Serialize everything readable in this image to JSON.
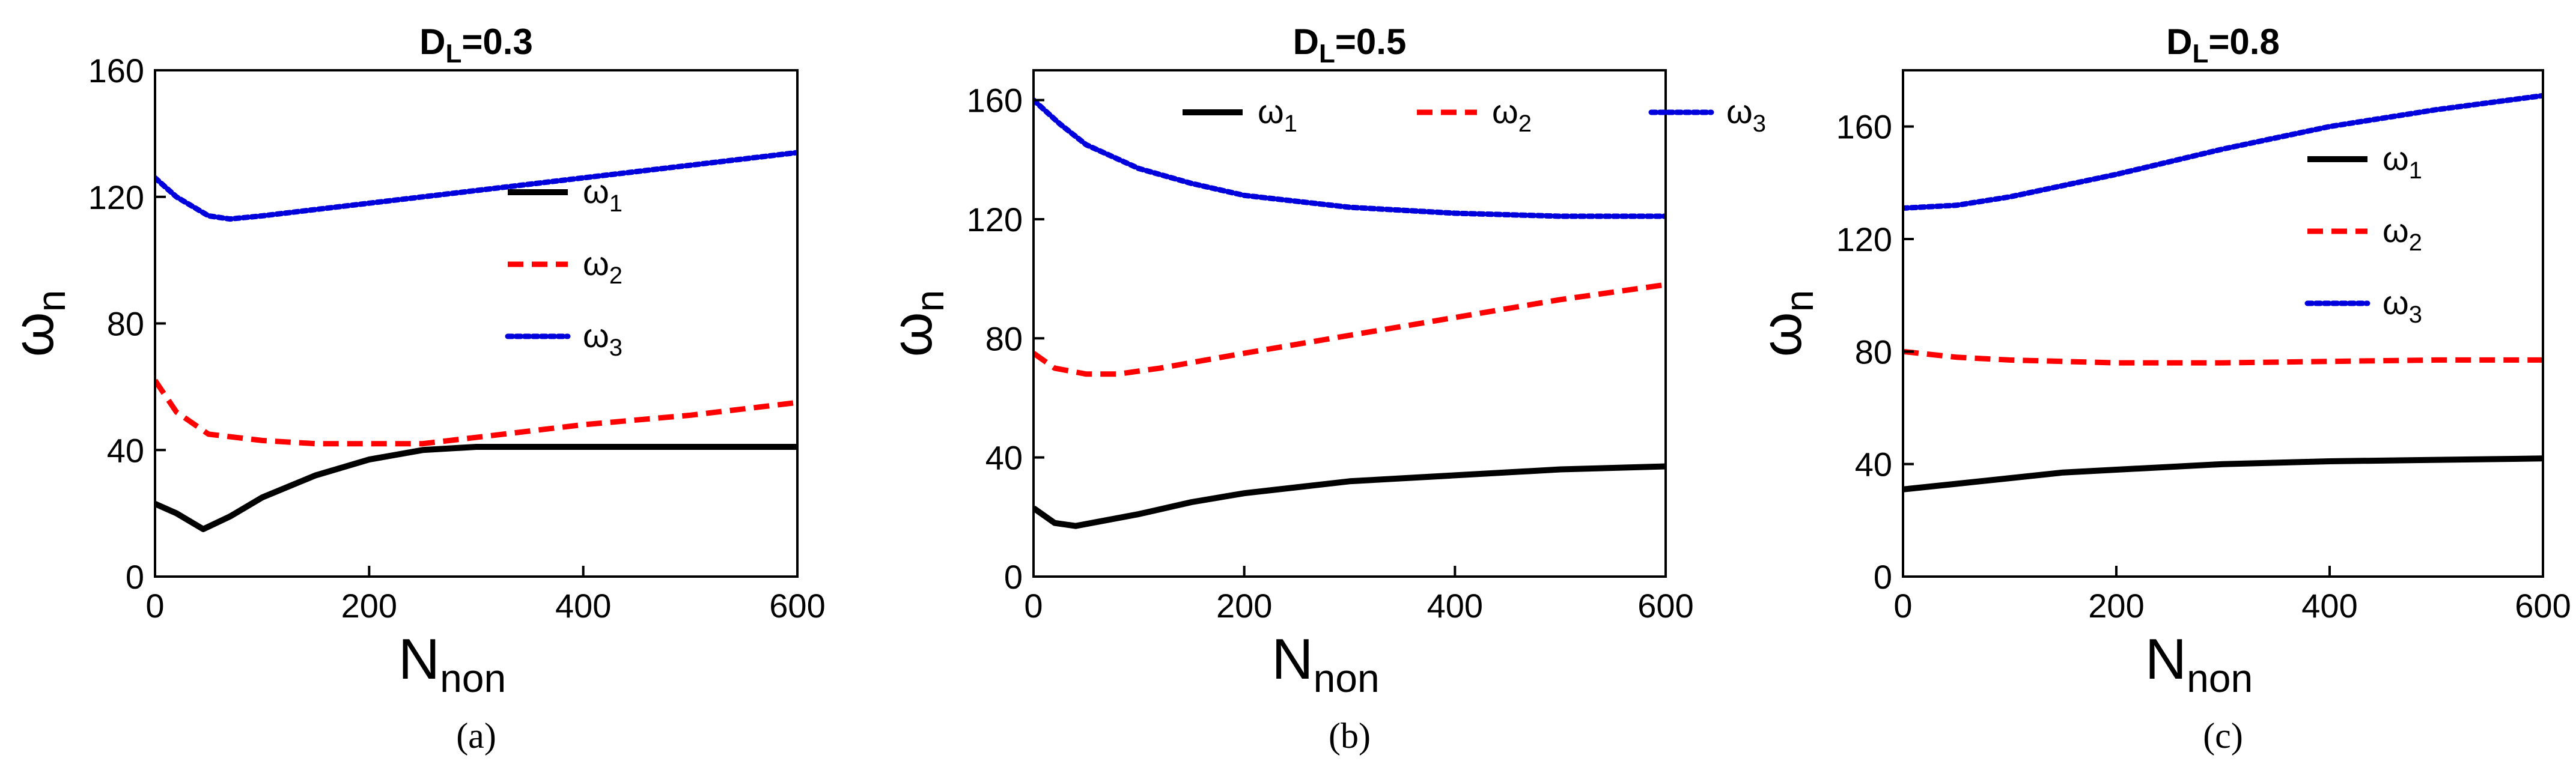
{
  "chart_data": [
    {
      "type": "line",
      "panel_label": "(a)",
      "title_main": "D",
      "title_sub": "L",
      "title_value": "=0.3",
      "xlabel_main": "N",
      "xlabel_sub": "non",
      "ylabel_main": "ω",
      "ylabel_sub": "n",
      "xlim": [
        0,
        600
      ],
      "ylim": [
        0,
        160
      ],
      "xticks": [
        0,
        200,
        400,
        600
      ],
      "yticks": [
        0,
        40,
        80,
        120,
        160
      ],
      "legend_position": "right-middle",
      "series": [
        {
          "name": "ω1",
          "legend_main": "ω",
          "legend_sub": "1",
          "color": "#000000",
          "style": "solid",
          "x": [
            0,
            20,
            45,
            70,
            100,
            150,
            200,
            250,
            300,
            400,
            500,
            600
          ],
          "y": [
            23,
            20,
            15,
            19,
            25,
            32,
            37,
            40,
            41,
            41,
            41,
            41
          ]
        },
        {
          "name": "ω2",
          "legend_main": "ω",
          "legend_sub": "2",
          "color": "#ff0000",
          "style": "dashed",
          "x": [
            0,
            20,
            50,
            100,
            150,
            200,
            250,
            300,
            400,
            500,
            600
          ],
          "y": [
            62,
            52,
            45,
            43,
            42,
            42,
            42,
            44,
            48,
            51,
            55
          ]
        },
        {
          "name": "ω3",
          "legend_main": "ω",
          "legend_sub": "3",
          "color": "#0000dd",
          "style": "dotted",
          "x": [
            0,
            20,
            50,
            70,
            100,
            150,
            200,
            300,
            400,
            500,
            600
          ],
          "y": [
            126,
            120,
            114,
            113,
            114,
            116,
            118,
            122,
            126,
            130,
            134
          ]
        }
      ]
    },
    {
      "type": "line",
      "panel_label": "(b)",
      "title_main": "D",
      "title_sub": "L",
      "title_value": "=0.5",
      "xlabel_main": "N",
      "xlabel_sub": "non",
      "ylabel_main": "ω",
      "ylabel_sub": "n",
      "xlim": [
        0,
        600
      ],
      "ylim": [
        0,
        170
      ],
      "xticks": [
        0,
        200,
        400,
        600
      ],
      "yticks": [
        0,
        40,
        80,
        120,
        160
      ],
      "legend_position": "top-right",
      "series": [
        {
          "name": "ω1",
          "legend_main": "ω",
          "legend_sub": "1",
          "color": "#000000",
          "style": "solid",
          "x": [
            0,
            20,
            40,
            70,
            100,
            150,
            200,
            300,
            400,
            500,
            600
          ],
          "y": [
            23,
            18,
            17,
            19,
            21,
            25,
            28,
            32,
            34,
            36,
            37
          ]
        },
        {
          "name": "ω2",
          "legend_main": "ω",
          "legend_sub": "2",
          "color": "#ff0000",
          "style": "dashed",
          "x": [
            0,
            20,
            50,
            80,
            120,
            200,
            300,
            400,
            500,
            600
          ],
          "y": [
            75,
            70,
            68,
            68,
            70,
            75,
            81,
            87,
            93,
            98
          ]
        },
        {
          "name": "ω3",
          "legend_main": "ω",
          "legend_sub": "3",
          "color": "#0000dd",
          "style": "dotted",
          "x": [
            0,
            25,
            50,
            100,
            150,
            200,
            300,
            400,
            500,
            600
          ],
          "y": [
            160,
            152,
            145,
            137,
            132,
            128,
            124,
            122,
            121,
            121
          ]
        }
      ]
    },
    {
      "type": "line",
      "panel_label": "(c)",
      "title_main": "D",
      "title_sub": "L",
      "title_value": "=0.8",
      "xlabel_main": "N",
      "xlabel_sub": "non",
      "ylabel_main": "ω",
      "ylabel_sub": "n",
      "xlim": [
        0,
        600
      ],
      "ylim": [
        0,
        180
      ],
      "xticks": [
        0,
        200,
        400,
        600
      ],
      "yticks": [
        0,
        40,
        80,
        120,
        160
      ],
      "legend_position": "right-middle",
      "series": [
        {
          "name": "ω1",
          "legend_main": "ω",
          "legend_sub": "1",
          "color": "#000000",
          "style": "solid",
          "x": [
            0,
            50,
            100,
            150,
            200,
            300,
            400,
            500,
            600
          ],
          "y": [
            31,
            33,
            35,
            37,
            38,
            40,
            41,
            41.5,
            42
          ]
        },
        {
          "name": "ω2",
          "legend_main": "ω",
          "legend_sub": "2",
          "color": "#ff0000",
          "style": "dashed",
          "x": [
            0,
            50,
            100,
            200,
            300,
            400,
            500,
            600
          ],
          "y": [
            80,
            78,
            77,
            76,
            76,
            76.5,
            77,
            77
          ]
        },
        {
          "name": "ω3",
          "legend_main": "ω",
          "legend_sub": "3",
          "color": "#0000dd",
          "style": "dotted",
          "x": [
            0,
            50,
            100,
            150,
            200,
            300,
            400,
            500,
            600
          ],
          "y": [
            131,
            132,
            135,
            139,
            143,
            152,
            160,
            166,
            171
          ]
        }
      ]
    }
  ]
}
